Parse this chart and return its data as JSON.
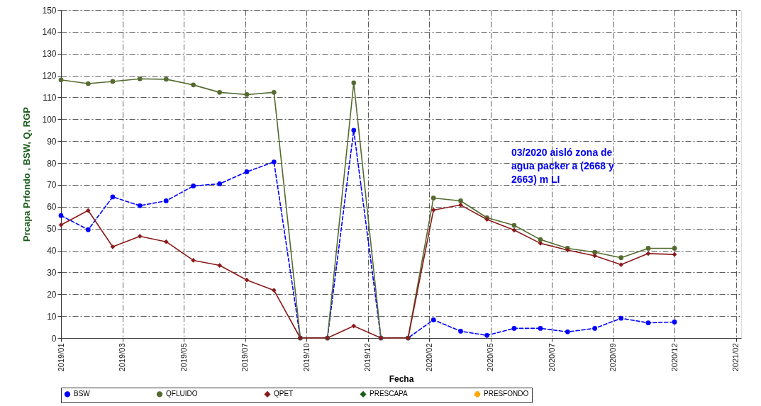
{
  "chart_data": {
    "type": "line",
    "xlabel": "Fecha",
    "ylabel": "Prcapa Prfondo , BSW, Q, RGP",
    "x": [
      "2019-01",
      "2019-02",
      "2019-03",
      "2019-04",
      "2019-05",
      "2019-06",
      "2019-07",
      "2019-08",
      "2019-09",
      "2019-10",
      "2019-11",
      "2019-12",
      "2020-01",
      "2020-02",
      "2020-03",
      "2020-04",
      "2020-05",
      "2020-06",
      "2020-07",
      "2020-08",
      "2020-09",
      "2020-10",
      "2020-11",
      "2020-12"
    ],
    "series": [
      {
        "name": "BSW",
        "color": "#0000ff",
        "line_style": "dashed",
        "marker": "circle",
        "values": [
          56,
          49.5,
          64.5,
          60.5,
          62.7,
          69.5,
          70.5,
          76,
          80.5,
          0,
          0,
          95,
          0,
          0,
          8.3,
          3.1,
          1.2,
          4.4,
          4.4,
          2.8,
          4.4,
          9,
          6.9,
          7.3
        ]
      },
      {
        "name": "QFLUIDO",
        "color": "#556b2f",
        "line_style": "solid",
        "marker": "circle",
        "values": [
          118,
          116.3,
          117.3,
          118.5,
          118.3,
          115.7,
          112.3,
          111.3,
          112.3,
          0,
          0,
          116.7,
          0,
          0,
          64,
          62.7,
          55,
          51.5,
          45,
          41,
          39.2,
          36.7,
          41,
          41
        ]
      },
      {
        "name": "QPET",
        "color": "#8b1a1a",
        "line_style": "solid",
        "marker": "diamond",
        "values": [
          51.7,
          58.3,
          41.7,
          46.5,
          44,
          35.5,
          33.2,
          26.5,
          21.8,
          0,
          0,
          5.5,
          0,
          0,
          58.5,
          60.8,
          54.2,
          49.3,
          43.3,
          40.2,
          37.6,
          33.5,
          38.6,
          38.2
        ]
      },
      {
        "name": "PRESCAPA",
        "color": "#1a5c1a",
        "line_style": "solid",
        "marker": "diamond",
        "values": [
          null,
          null,
          null,
          null,
          null,
          null,
          null,
          null,
          null,
          null,
          null,
          null,
          null,
          null,
          null,
          null,
          null,
          null,
          null,
          null,
          null,
          null,
          null,
          null
        ]
      },
      {
        "name": "PRESFONDO",
        "color": "#ffa500",
        "line_style": "solid",
        "marker": "cross",
        "values": [
          null,
          null,
          null,
          null,
          null,
          null,
          null,
          null,
          null,
          null,
          null,
          null,
          null,
          null,
          null,
          null,
          null,
          null,
          null,
          null,
          null,
          null,
          null,
          null
        ]
      }
    ],
    "xlim": [
      "2019-01-01",
      "2021-02-15"
    ],
    "xticks": [
      {
        "value": "2019-01-01",
        "label": "2019/01"
      },
      {
        "value": "2019-03-12",
        "label": "2019/03"
      },
      {
        "value": "2019-05-21",
        "label": "2019/05"
      },
      {
        "value": "2019-07-30",
        "label": "2019/07"
      },
      {
        "value": "2019-10-08",
        "label": "2019/10"
      },
      {
        "value": "2019-12-17",
        "label": "2019/12"
      },
      {
        "value": "2020-02-25",
        "label": "2020/02"
      },
      {
        "value": "2020-05-05",
        "label": "2020/05"
      },
      {
        "value": "2020-07-14",
        "label": "2020/07"
      },
      {
        "value": "2020-09-22",
        "label": "2020/09"
      },
      {
        "value": "2020-12-01",
        "label": "2020/12"
      },
      {
        "value": "2021-02-09",
        "label": "2021/02"
      }
    ],
    "ylim": [
      0,
      150
    ],
    "yticks": [
      0,
      10,
      20,
      30,
      40,
      50,
      60,
      70,
      80,
      90,
      100,
      110,
      120,
      130,
      140,
      150
    ],
    "grid": true,
    "legend": "bottom",
    "annotations": [
      "03/2020 aisló zona de agua packer a (2668 y 2663) m LI"
    ]
  }
}
